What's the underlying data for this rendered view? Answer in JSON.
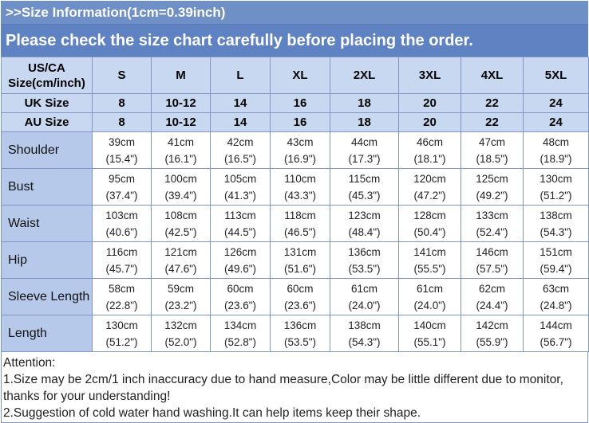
{
  "header": {
    "title": ">>Size Information(1cm=0.39inch)",
    "notice": "Please check the size chart carefully before placing the order."
  },
  "table": {
    "header_label": [
      "US/CA",
      "Size(cm/inch)"
    ],
    "sizes": [
      "S",
      "M",
      "L",
      "XL",
      "2XL",
      "3XL",
      "4XL",
      "5XL"
    ],
    "uk": {
      "label": "UK Size",
      "values": [
        "8",
        "10-12",
        "14",
        "16",
        "18",
        "20",
        "22",
        "24"
      ]
    },
    "au": {
      "label": "AU Size",
      "values": [
        "8",
        "10-12",
        "14",
        "16",
        "18",
        "20",
        "22",
        "24"
      ]
    },
    "rows": [
      {
        "label": "Shoulder",
        "cm": [
          "39cm",
          "41cm",
          "42cm",
          "43cm",
          "44cm",
          "46cm",
          "47cm",
          "48cm"
        ],
        "inch": [
          "(15.4\")",
          "(16.1\")",
          "(16.5\")",
          "(16.9\")",
          "(17.3\")",
          "(18.1\")",
          "(18.5\")",
          "(18.9\")"
        ]
      },
      {
        "label": "Bust",
        "cm": [
          "95cm",
          "100cm",
          "105cm",
          "110cm",
          "115cm",
          "120cm",
          "125cm",
          "130cm"
        ],
        "inch": [
          "(37.4\")",
          "(39.4\")",
          "(41.3\")",
          "(43.3\")",
          "(45.3\")",
          "(47.2\")",
          "(49.2\")",
          "(51.2\")"
        ]
      },
      {
        "label": "Waist",
        "cm": [
          "103cm",
          "108cm",
          "113cm",
          "118cm",
          "123cm",
          "128cm",
          "133cm",
          "138cm"
        ],
        "inch": [
          "(40.6\")",
          "(42.5\")",
          "(44.5\")",
          "(46.5\")",
          "(48.4\")",
          "(50.4\")",
          "(52.4\")",
          "(54.3\")"
        ]
      },
      {
        "label": "Hip",
        "cm": [
          "116cm",
          "121cm",
          "126cm",
          "131cm",
          "136cm",
          "141cm",
          "146cm",
          "151cm"
        ],
        "inch": [
          "(45.7\")",
          "(47.6\")",
          "(49.6\")",
          "(51.6\")",
          "(53.5\")",
          "(55.5\")",
          "(57.5\")",
          "(59.4\")"
        ]
      },
      {
        "label": "Sleeve Length",
        "cm": [
          "58cm",
          "59cm",
          "60cm",
          "60cm",
          "61cm",
          "61cm",
          "62cm",
          "63cm"
        ],
        "inch": [
          "(22.8\")",
          "(23.2\")",
          "(23.6\")",
          "(23.6\")",
          "(24.0\")",
          "(24.0\")",
          "(24.4\")",
          "(24.8\")"
        ]
      },
      {
        "label": "Length",
        "cm": [
          "130cm",
          "132cm",
          "134cm",
          "136cm",
          "138cm",
          "140cm",
          "142cm",
          "144cm"
        ],
        "inch": [
          "(51.2\")",
          "(52.0\")",
          "(52.8\")",
          "(53.5\")",
          "(54.3\")",
          "(55.1\")",
          "(55.9\")",
          "(56.7\")"
        ]
      }
    ]
  },
  "notes": [
    "Attention:",
    "1.Size may be 2cm/1 inch inaccuracy due to hand measure,Color may be little different due to monitor,",
    "thanks for your understanding!",
    "2.Suggestion of cold water hand washing.It can help items keep their shape."
  ]
}
